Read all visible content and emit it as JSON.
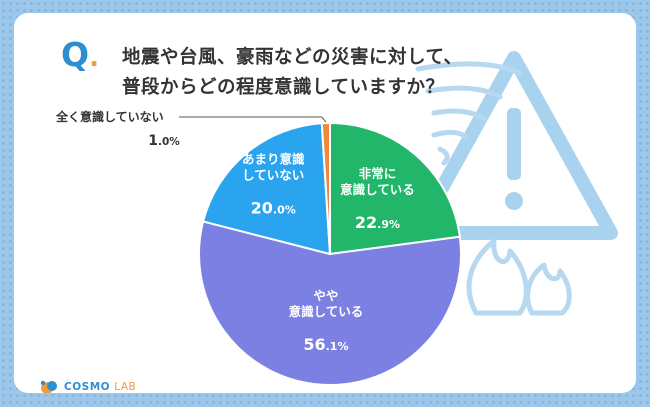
{
  "question": {
    "mark": "Q",
    "mark_dot": ".",
    "line1": "地震や台風、豪雨などの災害に対して、",
    "line2": "普段からどの程度意識していますか？"
  },
  "brand": {
    "name": "COSMO",
    "suffix": "LAB"
  },
  "colors": {
    "background": "#9cc6ea",
    "accent_blue": "#2f8ed0",
    "accent_orange": "#f39a3d",
    "warning_icon": "#a9d2ee"
  },
  "decor_icons": [
    "warning-triangle-icon",
    "tornado-icon",
    "flame-icon"
  ],
  "chart_data": {
    "type": "pie",
    "start": "12 o'clock, clockwise",
    "slices": [
      {
        "label_lines": [
          "非常に",
          "意識している"
        ],
        "value": 22.9,
        "value_int": "22",
        "value_dec": ".9%",
        "color": "#21b66a"
      },
      {
        "label_lines": [
          "やや",
          "意識している"
        ],
        "value": 56.1,
        "value_int": "56",
        "value_dec": ".1%",
        "color": "#7c80e3"
      },
      {
        "label_lines": [
          "あまり意識",
          "していない"
        ],
        "value": 20.0,
        "value_int": "20",
        "value_dec": ".0%",
        "color": "#2aa4ef"
      },
      {
        "label_lines": [
          "全く意識していない"
        ],
        "value": 1.0,
        "value_int": "1",
        "value_dec": ".0%",
        "color": "#ee8a3e"
      }
    ]
  }
}
